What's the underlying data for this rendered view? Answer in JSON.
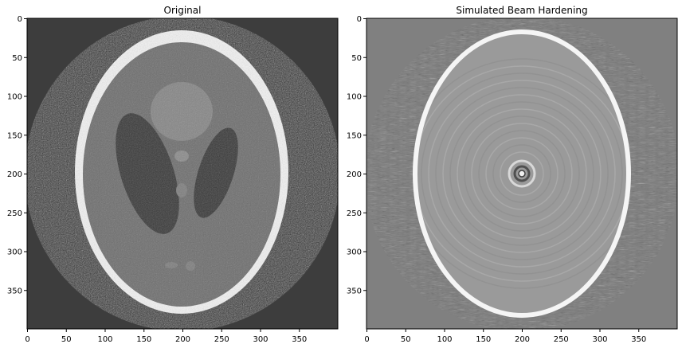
{
  "figure": {
    "panels": [
      {
        "title": "Original",
        "x_ticks": [
          "0",
          "50",
          "100",
          "150",
          "200",
          "250",
          "300",
          "350"
        ],
        "y_ticks": [
          "0",
          "50",
          "100",
          "150",
          "200",
          "250",
          "300",
          "350"
        ],
        "colors": {
          "background": "#3d3d3d",
          "outer_disc": "#2c2c2c",
          "skull": "#f2f2f2",
          "brain": "#6d6d6d",
          "ventricles": "#383838",
          "upper_blob": "#858585"
        }
      },
      {
        "title": "Simulated Beam Hardening",
        "x_ticks": [
          "0",
          "50",
          "100",
          "150",
          "200",
          "250",
          "300",
          "350"
        ],
        "y_ticks": [
          "0",
          "50",
          "100",
          "150",
          "200",
          "250",
          "300",
          "350"
        ],
        "colors": {
          "background": "#808080",
          "ellipse_fill": "#9a9a9a",
          "rim": "#f5f5f5",
          "rings": "#b2b2b2"
        }
      }
    ]
  }
}
